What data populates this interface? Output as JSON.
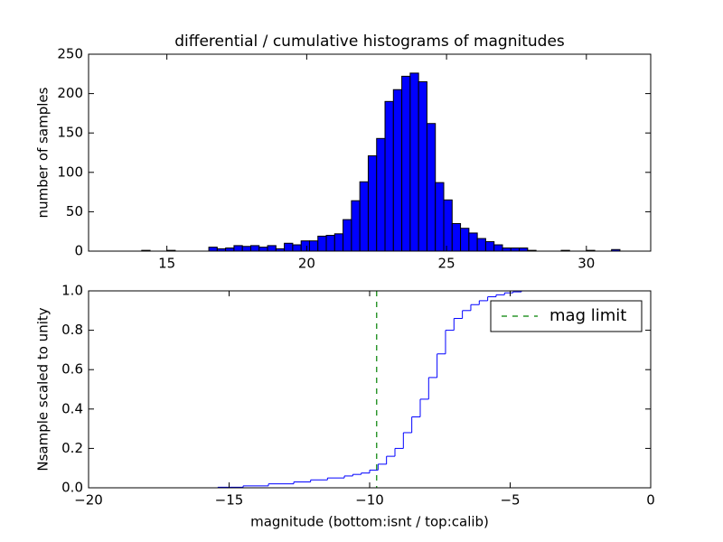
{
  "chart_data": [
    {
      "type": "histogram",
      "title": "differential / cumulative histograms of magnitudes",
      "ylabel": "number of samples",
      "bins": [
        14.1,
        14.4,
        14.7,
        15.0,
        15.3,
        15.6,
        15.9,
        16.2,
        16.5,
        16.8,
        17.1,
        17.4,
        17.7,
        18.0,
        18.3,
        18.6,
        18.9,
        19.2,
        19.5,
        19.8,
        20.1,
        20.4,
        20.7,
        21.0,
        21.3,
        21.6,
        21.9,
        22.2,
        22.5,
        22.8,
        23.1,
        23.4,
        23.7,
        24.0,
        24.3,
        24.6,
        24.9,
        25.2,
        25.5,
        25.8,
        26.1,
        26.4,
        26.7,
        27.0,
        27.3,
        27.6,
        27.9,
        28.2,
        28.5,
        28.8,
        29.1,
        29.4,
        29.7,
        30.0,
        30.3,
        30.6,
        30.9,
        31.2
      ],
      "values": [
        1,
        0,
        0,
        1,
        0,
        0,
        0,
        0,
        5,
        3,
        4,
        7,
        6,
        7,
        5,
        7,
        3,
        10,
        8,
        13,
        13,
        19,
        20,
        22,
        40,
        64,
        88,
        121,
        143,
        190,
        205,
        222,
        226,
        215,
        162,
        87,
        65,
        35,
        29,
        23,
        16,
        12,
        8,
        4,
        4,
        4,
        1,
        0,
        0,
        0,
        1,
        0,
        0,
        1,
        0,
        0,
        2
      ],
      "color": "#0000ff",
      "xlim": [
        12.2,
        32.3
      ],
      "xticks": [
        15,
        20,
        25,
        30
      ],
      "ylim": [
        0,
        250
      ],
      "yticks": [
        0,
        50,
        100,
        150,
        200,
        250
      ]
    },
    {
      "type": "step",
      "xlabel": "magnitude (bottom:isnt / top:calib)",
      "ylabel": "Nsample scaled to unity",
      "x": [
        -20,
        -15.4,
        -14.5,
        -13.6,
        -12.7,
        -12.1,
        -11.5,
        -10.9,
        -10.6,
        -10.3,
        -10.0,
        -9.7,
        -9.4,
        -9.1,
        -8.8,
        -8.5,
        -8.2,
        -7.9,
        -7.6,
        -7.3,
        -7.0,
        -6.7,
        -6.4,
        -6.1,
        -5.8,
        -5.5,
        -5.2,
        -4.9,
        -4.6,
        0,
        0
      ],
      "series": [
        {
          "color": "#0000ff",
          "values": [
            0,
            0.003,
            0.01,
            0.02,
            0.03,
            0.04,
            0.05,
            0.06,
            0.068,
            0.075,
            0.09,
            0.12,
            0.16,
            0.2,
            0.28,
            0.36,
            0.45,
            0.56,
            0.68,
            0.8,
            0.86,
            0.9,
            0.93,
            0.95,
            0.97,
            0.98,
            0.99,
            0.995,
            1.0,
            1.0,
            0
          ]
        }
      ],
      "vlines": [
        {
          "name": "mag limit",
          "x": -9.75,
          "color": "#008000"
        }
      ],
      "legend": "upper right",
      "xlim": [
        -20,
        0
      ],
      "xticks": [
        {
          "value": -20,
          "label": "−20"
        },
        {
          "value": -15,
          "label": "−15"
        },
        {
          "value": -10,
          "label": "−10"
        },
        {
          "value": -5,
          "label": "−5"
        },
        0
      ],
      "ylim": [
        0,
        1
      ],
      "yticks": [
        {
          "value": 0,
          "label": "0.0"
        },
        0.2,
        0.4,
        0.6,
        0.8,
        {
          "value": 1,
          "label": "1.0"
        }
      ]
    }
  ]
}
